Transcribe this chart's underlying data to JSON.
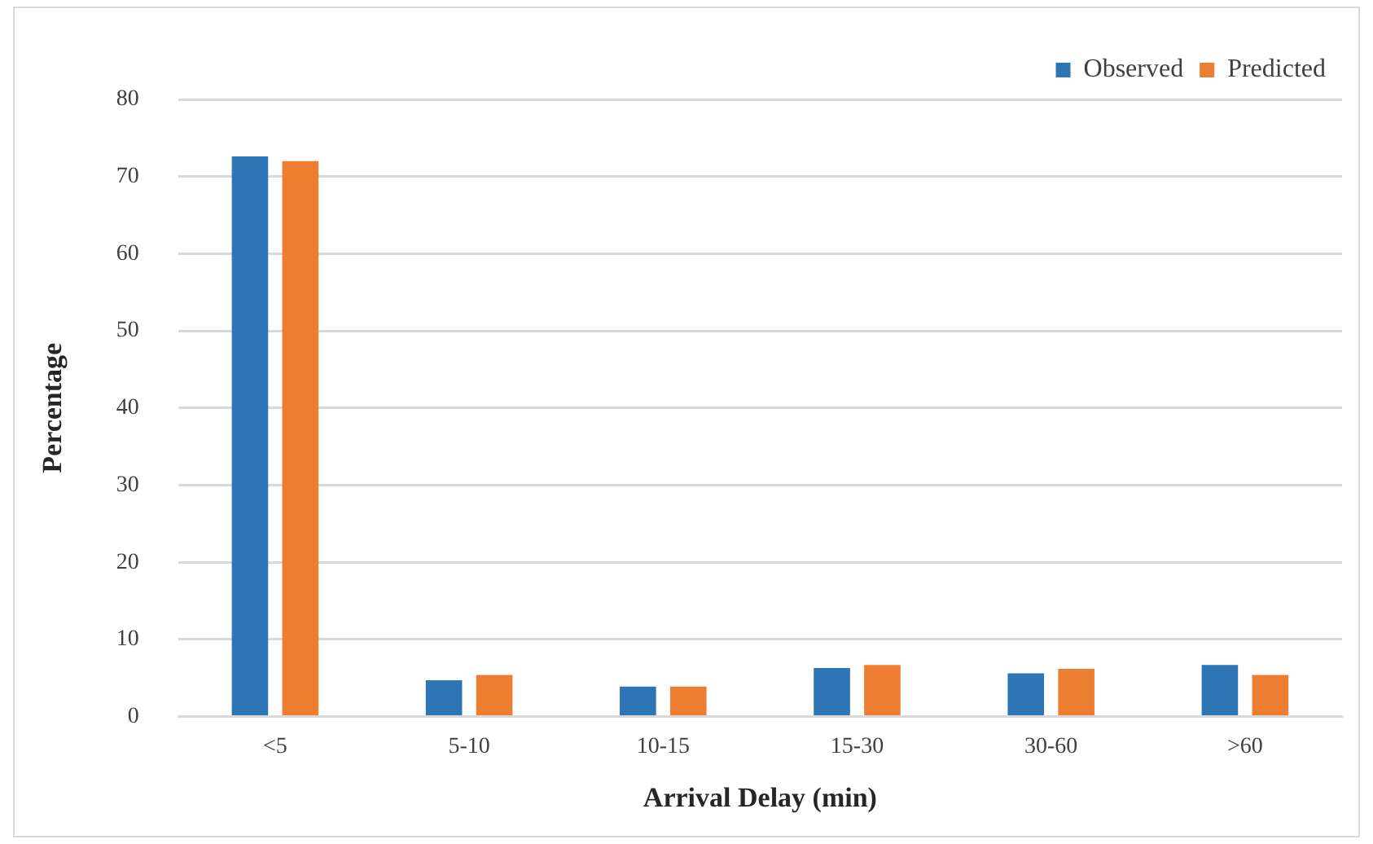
{
  "chart_data": {
    "type": "bar",
    "xlabel": "Arrival Delay (min)",
    "ylabel": "Percentage",
    "categories": [
      "<5",
      "5-10",
      "10-15",
      "15-30",
      "30-60",
      ">60"
    ],
    "series": [
      {
        "name": "Observed",
        "color": "#2e75b6",
        "values": [
          72.6,
          4.7,
          3.9,
          6.3,
          5.6,
          6.7
        ]
      },
      {
        "name": "Predicted",
        "color": "#ed7d31",
        "values": [
          72.0,
          5.4,
          3.9,
          6.7,
          6.2,
          5.4
        ]
      }
    ],
    "ylim": [
      0,
      80
    ],
    "yticks": [
      0,
      10,
      20,
      30,
      40,
      50,
      60,
      70,
      80
    ],
    "grid": "y",
    "legend": "top right"
  }
}
